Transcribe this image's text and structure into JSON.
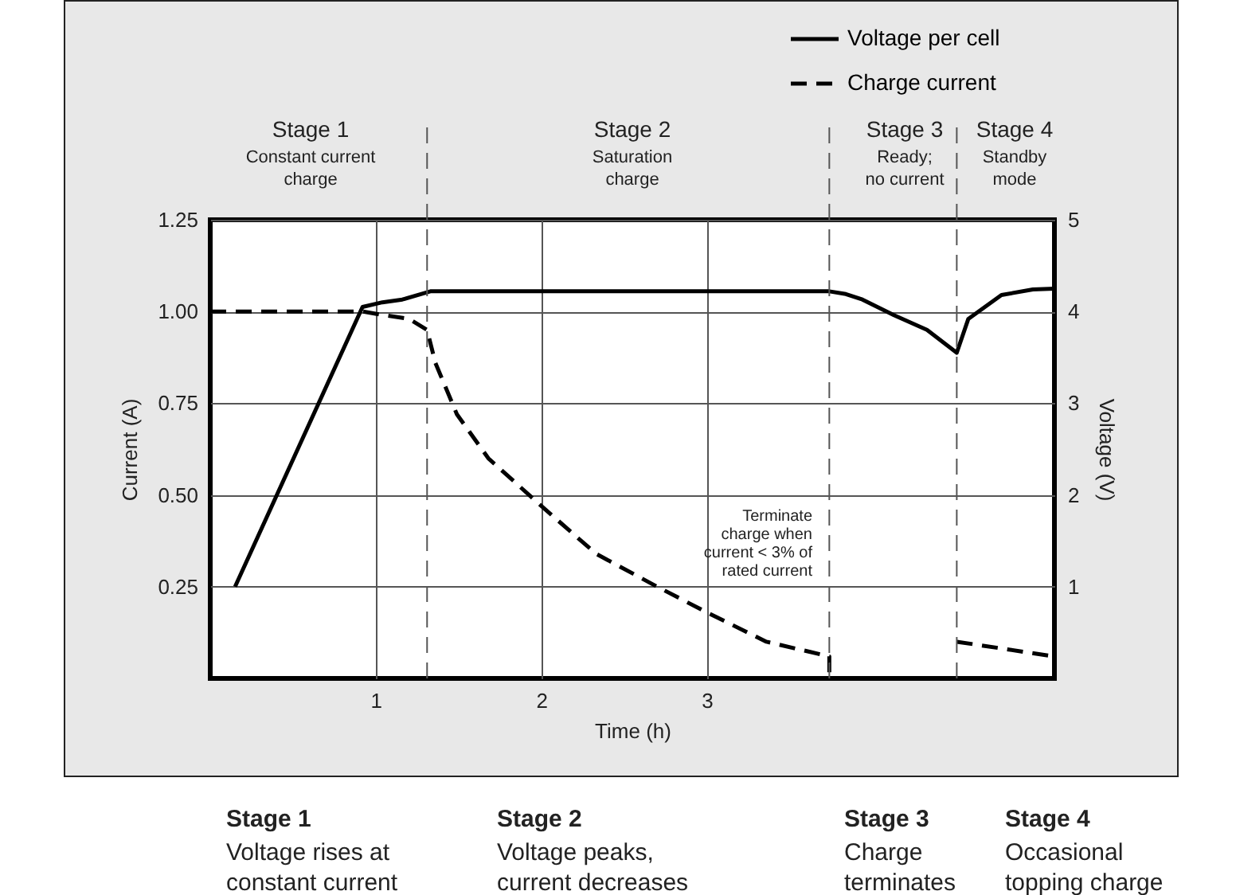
{
  "chart_data": {
    "type": "line",
    "xlabel": "Time (h)",
    "ylabel": "Current (A)",
    "y2label": "Voltage (V)",
    "xlim": [
      0,
      5.1
    ],
    "xticks": [
      1,
      2,
      3
    ],
    "ylim": [
      0,
      1.25
    ],
    "yticks": [
      {
        "value": 0.25,
        "label": "0.25"
      },
      {
        "value": 0.5,
        "label": "0.50"
      },
      {
        "value": 0.75,
        "label": "0.75"
      },
      {
        "value": 1,
        "label": "1.00"
      },
      {
        "value": 1.25,
        "label": "1.25"
      }
    ],
    "y2lim": [
      0,
      5
    ],
    "y2ticks": [
      1,
      2,
      3,
      4,
      5
    ],
    "grid": true,
    "legend": "top right",
    "series": [
      {
        "name": "Voltage per cell",
        "color": "#000000",
        "line_style": "solid",
        "axis": "y2",
        "x": [
          0.15,
          0.92,
          1.04,
          1.16,
          1.33,
          3.74,
          3.84,
          3.94,
          4.13,
          4.33,
          4.51,
          4.58,
          4.78,
          4.97,
          5.1
        ],
        "values": [
          1.0,
          4.05,
          4.1,
          4.13,
          4.22,
          4.22,
          4.19,
          4.13,
          3.96,
          3.8,
          3.55,
          3.92,
          4.18,
          4.24,
          4.25
        ]
      },
      {
        "name": "Charge current",
        "color": "#000000",
        "line_style": "dashed",
        "axis": "y",
        "x": [
          0,
          0.92,
          1.05,
          1.2,
          1.31,
          1.36,
          1.49,
          1.68,
          2.0,
          2.33,
          2.7,
          3.0,
          3.36,
          3.74,
          3.74,
          4.1,
          4.51,
          5.1
        ],
        "values": [
          1.0,
          1.0,
          0.99,
          0.98,
          0.95,
          0.86,
          0.72,
          0.6,
          0.47,
          0.34,
          0.25,
          0.18,
          0.1,
          0.06,
          0,
          null,
          0.1,
          0.06
        ]
      }
    ],
    "ref_lines": [
      {
        "axis": "x",
        "value": 1.31,
        "line_style": "dashed",
        "color": "#555555"
      },
      {
        "axis": "x",
        "value": 3.74,
        "line_style": "dashed",
        "color": "#555555"
      },
      {
        "axis": "x",
        "value": 4.51,
        "line_style": "dashed",
        "color": "#555555"
      }
    ],
    "annotations": [
      "Stage 1",
      "Constant current\ncharge",
      "Stage 2",
      "Saturation\ncharge",
      "Stage 3",
      "Ready;\nno current",
      "Stage 4",
      "Standby\nmode",
      "Terminate\ncharge when\ncurrent < 3% of\nrated current",
      "Stage 1",
      "Voltage rises at\nconstant current",
      "Stage 2",
      "Voltage peaks,\ncurrent decreases",
      "Stage 3",
      "Charge\nterminates",
      "Stage 4",
      "Occasional\ntopping charge"
    ]
  }
}
